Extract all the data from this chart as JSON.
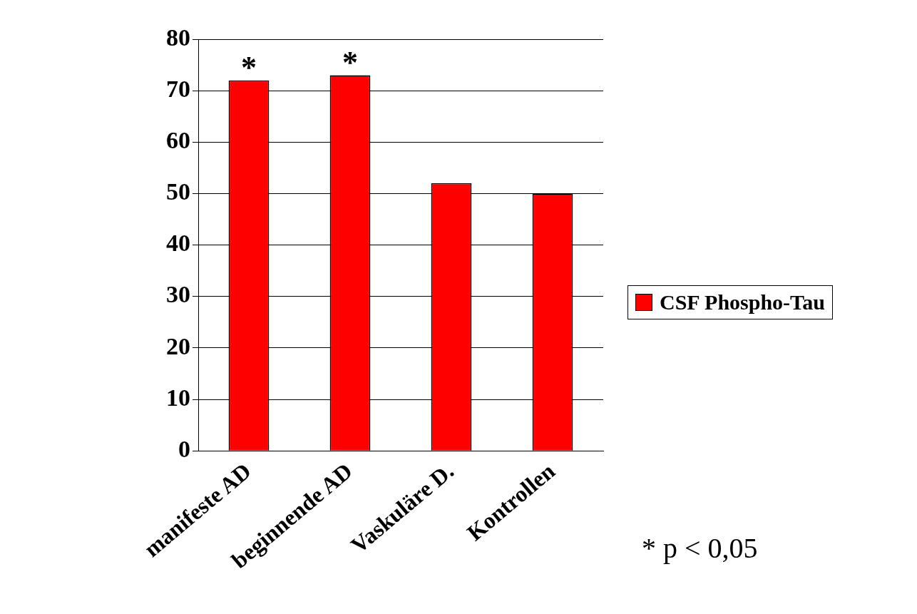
{
  "chart_data": {
    "type": "bar",
    "categories": [
      "manifeste AD",
      "beginnende AD",
      "Vaskuläre D.",
      "Kontrollen"
    ],
    "series": [
      {
        "name": "CSF Phospho-Tau",
        "color": "#ff0000",
        "values": [
          72,
          73,
          52,
          50
        ]
      }
    ],
    "ylim": [
      0,
      80
    ],
    "yticks": [
      0,
      10,
      20,
      30,
      40,
      50,
      60,
      70,
      80
    ],
    "grid": "y",
    "legend": "right",
    "annotations": [
      {
        "text": "*",
        "x": "manifeste AD",
        "y": 72
      },
      {
        "text": "*",
        "x": "beginnende AD",
        "y": 73
      },
      "* p < 0,05"
    ]
  }
}
